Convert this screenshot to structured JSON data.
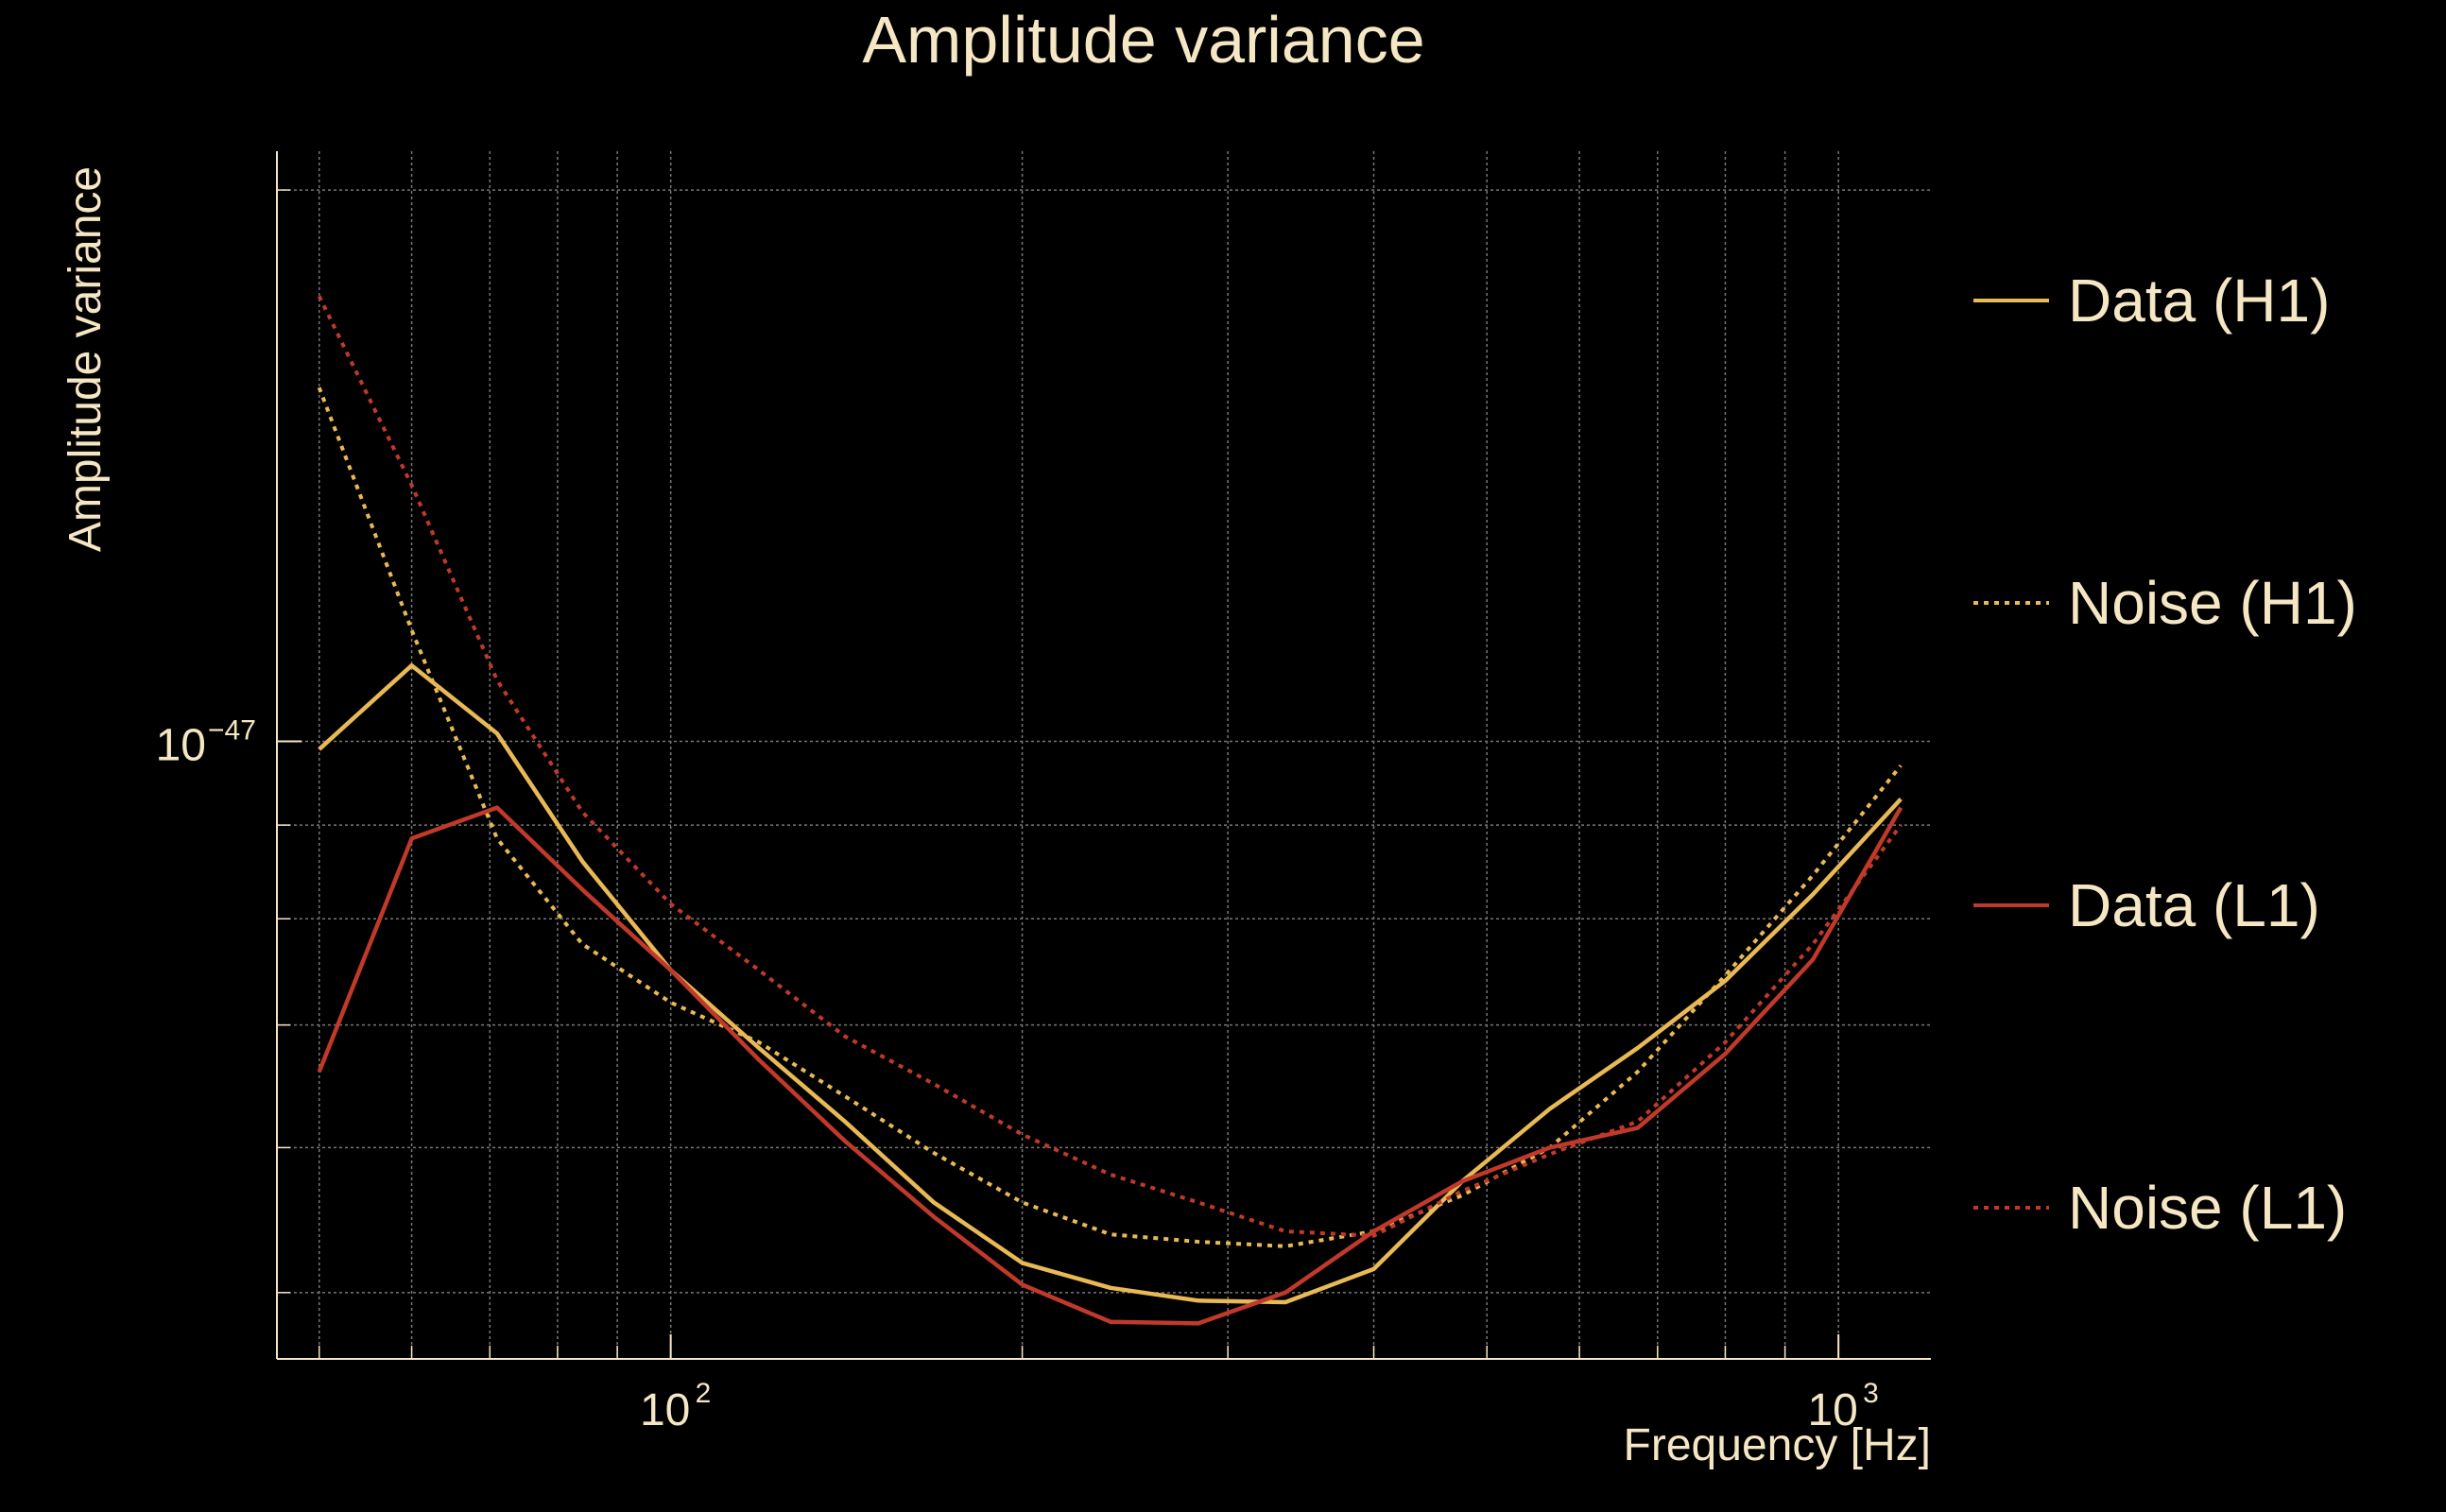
{
  "colors": {
    "background": "#000000",
    "text": "#f5e6c4",
    "grid": "#777777",
    "h1": "#e8b955",
    "l1": "#c0392b"
  },
  "chart_data": {
    "type": "line",
    "title": "Amplitude variance",
    "xlabel": "Frequency [Hz]",
    "ylabel": "Amplitude variance",
    "xscale": "log",
    "yscale": "log",
    "xlim": [
      46,
      1200
    ],
    "ylim": [
      4.6e-48,
      2.1e-47
    ],
    "xticks": [
      {
        "value": 100,
        "base": "10",
        "exp": "2"
      },
      {
        "value": 1000,
        "base": "10",
        "exp": "3"
      }
    ],
    "yticks": [
      {
        "value": 1e-47,
        "base": "10",
        "exp": "−47"
      }
    ],
    "grid": true,
    "legend_position": "right",
    "series": [
      {
        "name": "Data (H1)",
        "color": "#e8b955",
        "style": "solid",
        "x": [
          50,
          60,
          71,
          84,
          100,
          119,
          141,
          168,
          200,
          238,
          283,
          336,
          400,
          476,
          566,
          673,
          800,
          951,
          1131
        ],
        "y": [
          9.9e-48,
          1.1e-47,
          1.01e-47,
          8.6e-48,
          7.5e-48,
          6.8e-48,
          6.2e-48,
          5.6e-48,
          5.19e-48,
          5.03e-48,
          4.95e-48,
          4.94e-48,
          5.15e-48,
          5.75e-48,
          6.3e-48,
          6.8e-48,
          7.4e-48,
          8.25e-48,
          9.3e-48
        ]
      },
      {
        "name": "Noise (H1)",
        "color": "#e8b955",
        "style": "dotted",
        "x": [
          50,
          60,
          71,
          84,
          100,
          119,
          141,
          168,
          200,
          238,
          283,
          336,
          400,
          476,
          566,
          673,
          800,
          951,
          1131
        ],
        "y": [
          1.56e-47,
          1.15e-47,
          8.85e-48,
          7.75e-48,
          7.2e-48,
          6.85e-48,
          6.4e-48,
          5.96e-48,
          5.6e-48,
          5.38e-48,
          5.33e-48,
          5.3e-48,
          5.4e-48,
          5.65e-48,
          6e-48,
          6.6e-48,
          7.45e-48,
          8.45e-48,
          9.7e-48
        ]
      },
      {
        "name": "Data (L1)",
        "color": "#c0392b",
        "style": "solid",
        "x": [
          50,
          60,
          71,
          84,
          100,
          119,
          141,
          168,
          200,
          238,
          283,
          336,
          400,
          476,
          566,
          673,
          800,
          951,
          1131
        ],
        "y": [
          6.6e-48,
          8.85e-48,
          9.2e-48,
          8.3e-48,
          7.5e-48,
          6.7e-48,
          6.05e-48,
          5.5e-48,
          5.05e-48,
          4.82e-48,
          4.81e-48,
          5e-48,
          5.4e-48,
          5.75e-48,
          6e-48,
          6.15e-48,
          6.75e-48,
          7.6e-48,
          9.2e-48
        ]
      },
      {
        "name": "Noise (L1)",
        "color": "#c0392b",
        "style": "dotted",
        "x": [
          50,
          60,
          71,
          84,
          100,
          119,
          141,
          168,
          200,
          238,
          283,
          336,
          400,
          476,
          566,
          673,
          800,
          951,
          1131
        ],
        "y": [
          1.75e-47,
          1.38e-47,
          1.08e-47,
          9.15e-48,
          8.15e-48,
          7.5e-48,
          6.9e-48,
          6.5e-48,
          6.1e-48,
          5.8e-48,
          5.6e-48,
          5.4e-48,
          5.37e-48,
          5.68e-48,
          5.95e-48,
          6.2e-48,
          6.85e-48,
          7.75e-48,
          9e-48
        ]
      }
    ]
  }
}
